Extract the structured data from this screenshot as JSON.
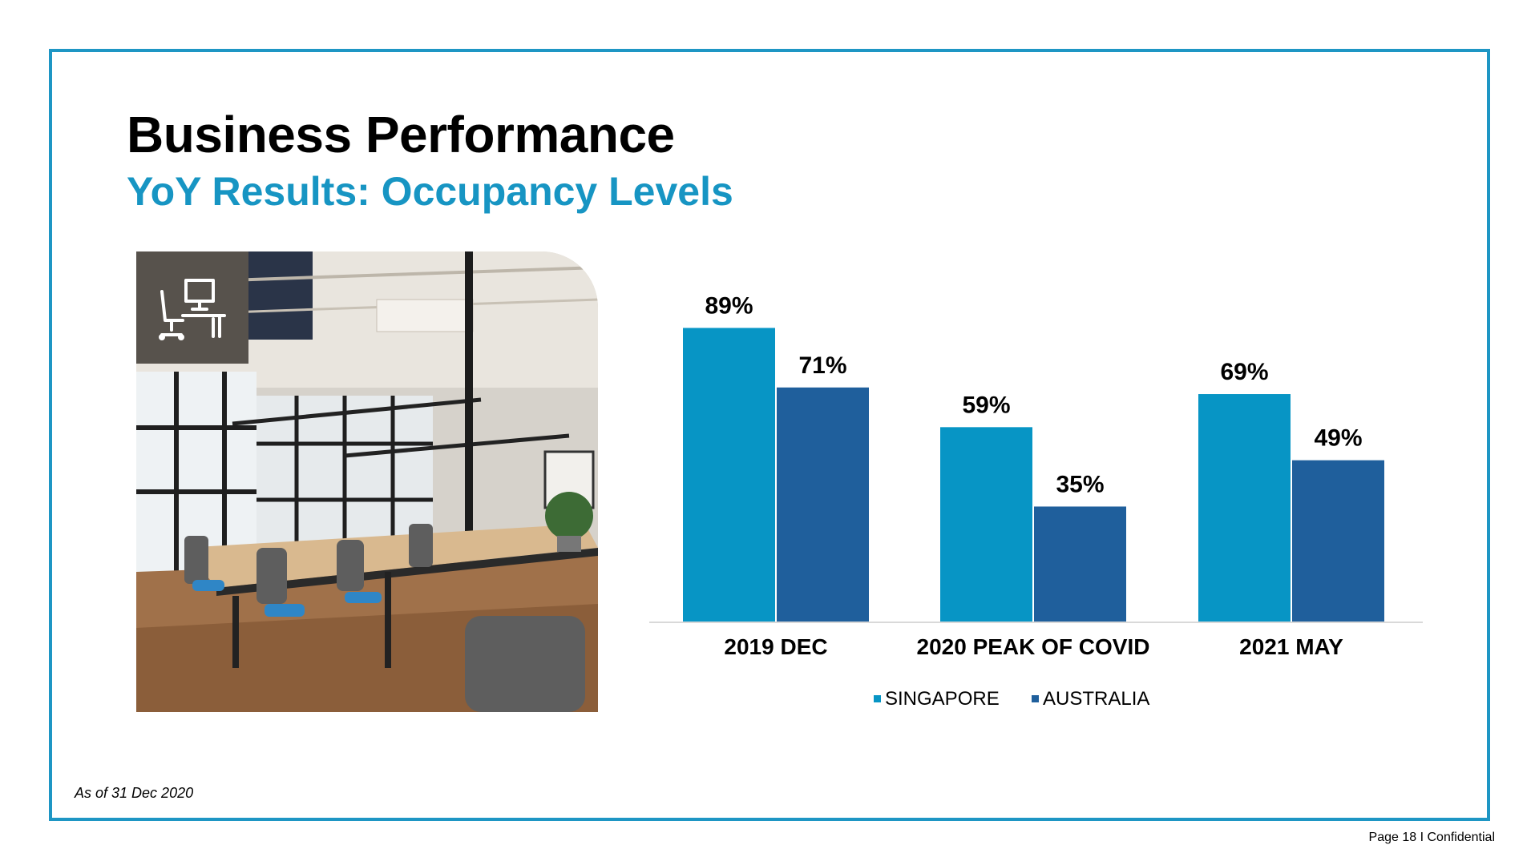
{
  "header": {
    "title": "Business Performance",
    "subtitle": "YoY Results: Occupancy Levels"
  },
  "image": {
    "icon": "desk-workstation-icon"
  },
  "colors": {
    "frame": "#1e96c4",
    "subtitle": "#1795c3",
    "singapore": "#0795c5",
    "australia": "#1f5f9c",
    "axis": "#d9d9d9"
  },
  "chart_data": {
    "type": "bar",
    "categories": [
      "2019 DEC",
      "2020 PEAK OF COVID",
      "2021 MAY"
    ],
    "series": [
      {
        "name": "SINGAPORE",
        "values": [
          89,
          59,
          69
        ],
        "labels": [
          "89%",
          "59%",
          "69%"
        ]
      },
      {
        "name": "AUSTRALIA",
        "values": [
          71,
          35,
          49
        ],
        "labels": [
          "71%",
          "35%",
          "49%"
        ]
      }
    ],
    "title": "",
    "xlabel": "",
    "ylabel": "",
    "ylim": [
      0,
      100
    ],
    "grid": false,
    "legend_position": "bottom"
  },
  "footer": {
    "note": "As of 31 Dec 2020",
    "page": "Page 18 I Confidential"
  }
}
